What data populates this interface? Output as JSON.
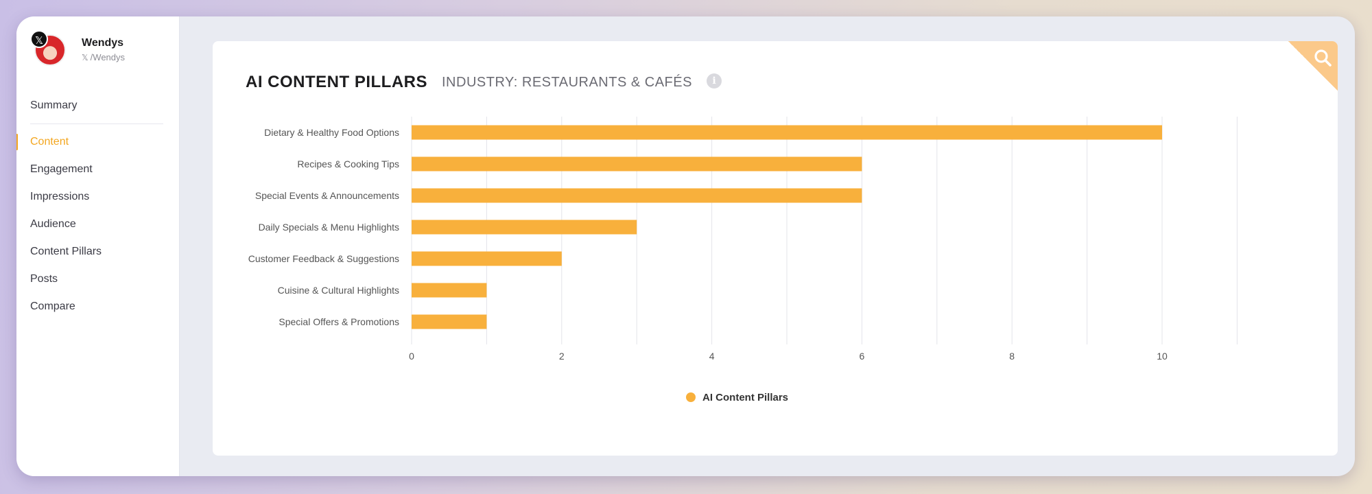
{
  "profile": {
    "name": "Wendys",
    "handle": "/Wendys",
    "platform_icon": "x-logo-icon"
  },
  "sidebar": {
    "items": [
      {
        "label": "Summary",
        "active": false
      },
      {
        "label": "Content",
        "active": true
      },
      {
        "label": "Engagement",
        "active": false
      },
      {
        "label": "Impressions",
        "active": false
      },
      {
        "label": "Audience",
        "active": false
      },
      {
        "label": "Content Pillars",
        "active": false
      },
      {
        "label": "Posts",
        "active": false
      },
      {
        "label": "Compare",
        "active": false
      }
    ]
  },
  "card": {
    "title": "AI CONTENT PILLARS",
    "subtitle": "INDUSTRY: RESTAURANTS & CAFÉS",
    "info_icon": "info-icon",
    "corner_icon": "search-icon"
  },
  "colors": {
    "accent": "#f3a61f",
    "bar": "#f8b03c",
    "corner": "#fbc98a"
  },
  "chart_data": {
    "type": "bar",
    "orientation": "horizontal",
    "categories": [
      "Dietary & Healthy Food Options",
      "Recipes & Cooking Tips",
      "Special Events & Announcements",
      "Daily Specials & Menu Highlights",
      "Customer Feedback & Suggestions",
      "Cuisine & Cultural Highlights",
      "Special Offers & Promotions"
    ],
    "series": [
      {
        "name": "AI Content Pillars",
        "values": [
          10,
          6,
          6,
          3,
          2,
          1,
          1
        ]
      }
    ],
    "xlim": [
      0,
      11
    ],
    "xticks": [
      0,
      2,
      4,
      6,
      8,
      10
    ],
    "grid": true,
    "legend": "bottom-center"
  }
}
